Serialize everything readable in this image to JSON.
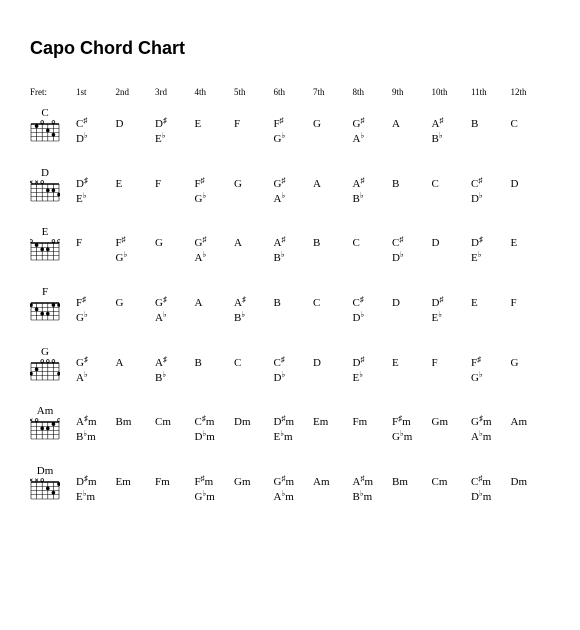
{
  "title": "Capo Chord Chart",
  "fret_label": "Fret:",
  "frets": [
    "1st",
    "2nd",
    "3rd",
    "4th",
    "5th",
    "6th",
    "7th",
    "8th",
    "9th",
    "10th",
    "11th",
    "12th"
  ],
  "chords": [
    {
      "label": "C",
      "diagram": {
        "x_strings": [],
        "o_strings": [
          2,
          4
        ],
        "dots": [
          [
            0,
            1
          ],
          [
            1,
            3
          ],
          [
            2,
            4
          ]
        ]
      },
      "cells": [
        [
          "C♯",
          "D♭"
        ],
        [
          "D"
        ],
        [
          "D♯",
          "E♭"
        ],
        [
          "E"
        ],
        [
          "F"
        ],
        [
          "F♯",
          "G♭"
        ],
        [
          "G"
        ],
        [
          "G♯",
          "A♭"
        ],
        [
          "A"
        ],
        [
          "A♯",
          "B♭"
        ],
        [
          "B"
        ],
        [
          "C"
        ]
      ]
    },
    {
      "label": "D",
      "diagram": {
        "x_strings": [
          0,
          1
        ],
        "o_strings": [
          2
        ],
        "dots": [
          [
            1,
            3
          ],
          [
            2,
            5
          ],
          [
            1,
            4
          ]
        ]
      },
      "cells": [
        [
          "D♯",
          "E♭"
        ],
        [
          "E"
        ],
        [
          "F"
        ],
        [
          "F♯",
          "G♭"
        ],
        [
          "G"
        ],
        [
          "G♯",
          "A♭"
        ],
        [
          "A"
        ],
        [
          "A♯",
          "B♭"
        ],
        [
          "B"
        ],
        [
          "C"
        ],
        [
          "C♯",
          "D♭"
        ],
        [
          "D"
        ]
      ]
    },
    {
      "label": "E",
      "diagram": {
        "x_strings": [],
        "o_strings": [
          0,
          4,
          5
        ],
        "dots": [
          [
            1,
            2
          ],
          [
            1,
            3
          ],
          [
            0,
            1
          ]
        ]
      },
      "cells": [
        [
          "F"
        ],
        [
          "F♯",
          "G♭"
        ],
        [
          "G"
        ],
        [
          "G♯",
          "A♭"
        ],
        [
          "A"
        ],
        [
          "A♯",
          "B♭"
        ],
        [
          "B"
        ],
        [
          "C"
        ],
        [
          "C♯",
          "D♭"
        ],
        [
          "D"
        ],
        [
          "D♯",
          "E♭"
        ],
        [
          "E"
        ]
      ]
    },
    {
      "label": "F",
      "diagram": {
        "x_strings": [],
        "o_strings": [],
        "dots": [
          [
            0,
            0
          ],
          [
            0,
            5
          ],
          [
            0,
            4
          ],
          [
            2,
            2
          ],
          [
            2,
            3
          ],
          [
            1,
            1
          ]
        ]
      },
      "cells": [
        [
          "F♯",
          "G♭"
        ],
        [
          "G"
        ],
        [
          "G♯",
          "A♭"
        ],
        [
          "A"
        ],
        [
          "A♯",
          "B♭"
        ],
        [
          "B"
        ],
        [
          "C"
        ],
        [
          "C♯",
          "D♭"
        ],
        [
          "D"
        ],
        [
          "D♯",
          "E♭"
        ],
        [
          "E"
        ],
        [
          "F"
        ]
      ]
    },
    {
      "label": "G",
      "diagram": {
        "x_strings": [],
        "o_strings": [
          2,
          3,
          4
        ],
        "dots": [
          [
            2,
            0
          ],
          [
            1,
            1
          ],
          [
            2,
            5
          ]
        ]
      },
      "cells": [
        [
          "G♯",
          "A♭"
        ],
        [
          "A"
        ],
        [
          "A♯",
          "B♭"
        ],
        [
          "B"
        ],
        [
          "C"
        ],
        [
          "C♯",
          "D♭"
        ],
        [
          "D"
        ],
        [
          "D♯",
          "E♭"
        ],
        [
          "E"
        ],
        [
          "F"
        ],
        [
          "F♯",
          "G♭"
        ],
        [
          "G"
        ]
      ]
    },
    {
      "label": "Am",
      "diagram": {
        "x_strings": [
          0
        ],
        "o_strings": [
          1,
          5
        ],
        "dots": [
          [
            1,
            2
          ],
          [
            1,
            3
          ],
          [
            0,
            4
          ]
        ]
      },
      "cells": [
        [
          "A♯m",
          "B♭m"
        ],
        [
          "Bm"
        ],
        [
          "Cm"
        ],
        [
          "C♯m",
          "D♭m"
        ],
        [
          "Dm"
        ],
        [
          "D♯m",
          "E♭m"
        ],
        [
          "Em"
        ],
        [
          "Fm"
        ],
        [
          "F♯m",
          "G♭m"
        ],
        [
          "Gm"
        ],
        [
          "G♯m",
          "A♭m"
        ],
        [
          "Am"
        ]
      ]
    },
    {
      "label": "Dm",
      "diagram": {
        "x_strings": [
          0,
          1
        ],
        "o_strings": [
          2
        ],
        "dots": [
          [
            1,
            3
          ],
          [
            2,
            4
          ],
          [
            0,
            5
          ]
        ]
      },
      "cells": [
        [
          "D♯m",
          "E♭m"
        ],
        [
          "Em"
        ],
        [
          "Fm"
        ],
        [
          "F♯m",
          "G♭m"
        ],
        [
          "Gm"
        ],
        [
          "G♯m",
          "A♭m"
        ],
        [
          "Am"
        ],
        [
          "A♯m",
          "B♭m"
        ],
        [
          "Bm"
        ],
        [
          "Cm"
        ],
        [
          "C♯m",
          "D♭m"
        ],
        [
          "Dm"
        ]
      ]
    }
  ],
  "style": {
    "bg": "#ffffff",
    "text": "#000000",
    "title_fontsize": 18,
    "body_fontsize": 11,
    "header_fontsize": 9,
    "diagram_stroke": "#000000",
    "diagram_width": 30,
    "diagram_height": 22,
    "strings": 6,
    "frets_shown": 4
  }
}
